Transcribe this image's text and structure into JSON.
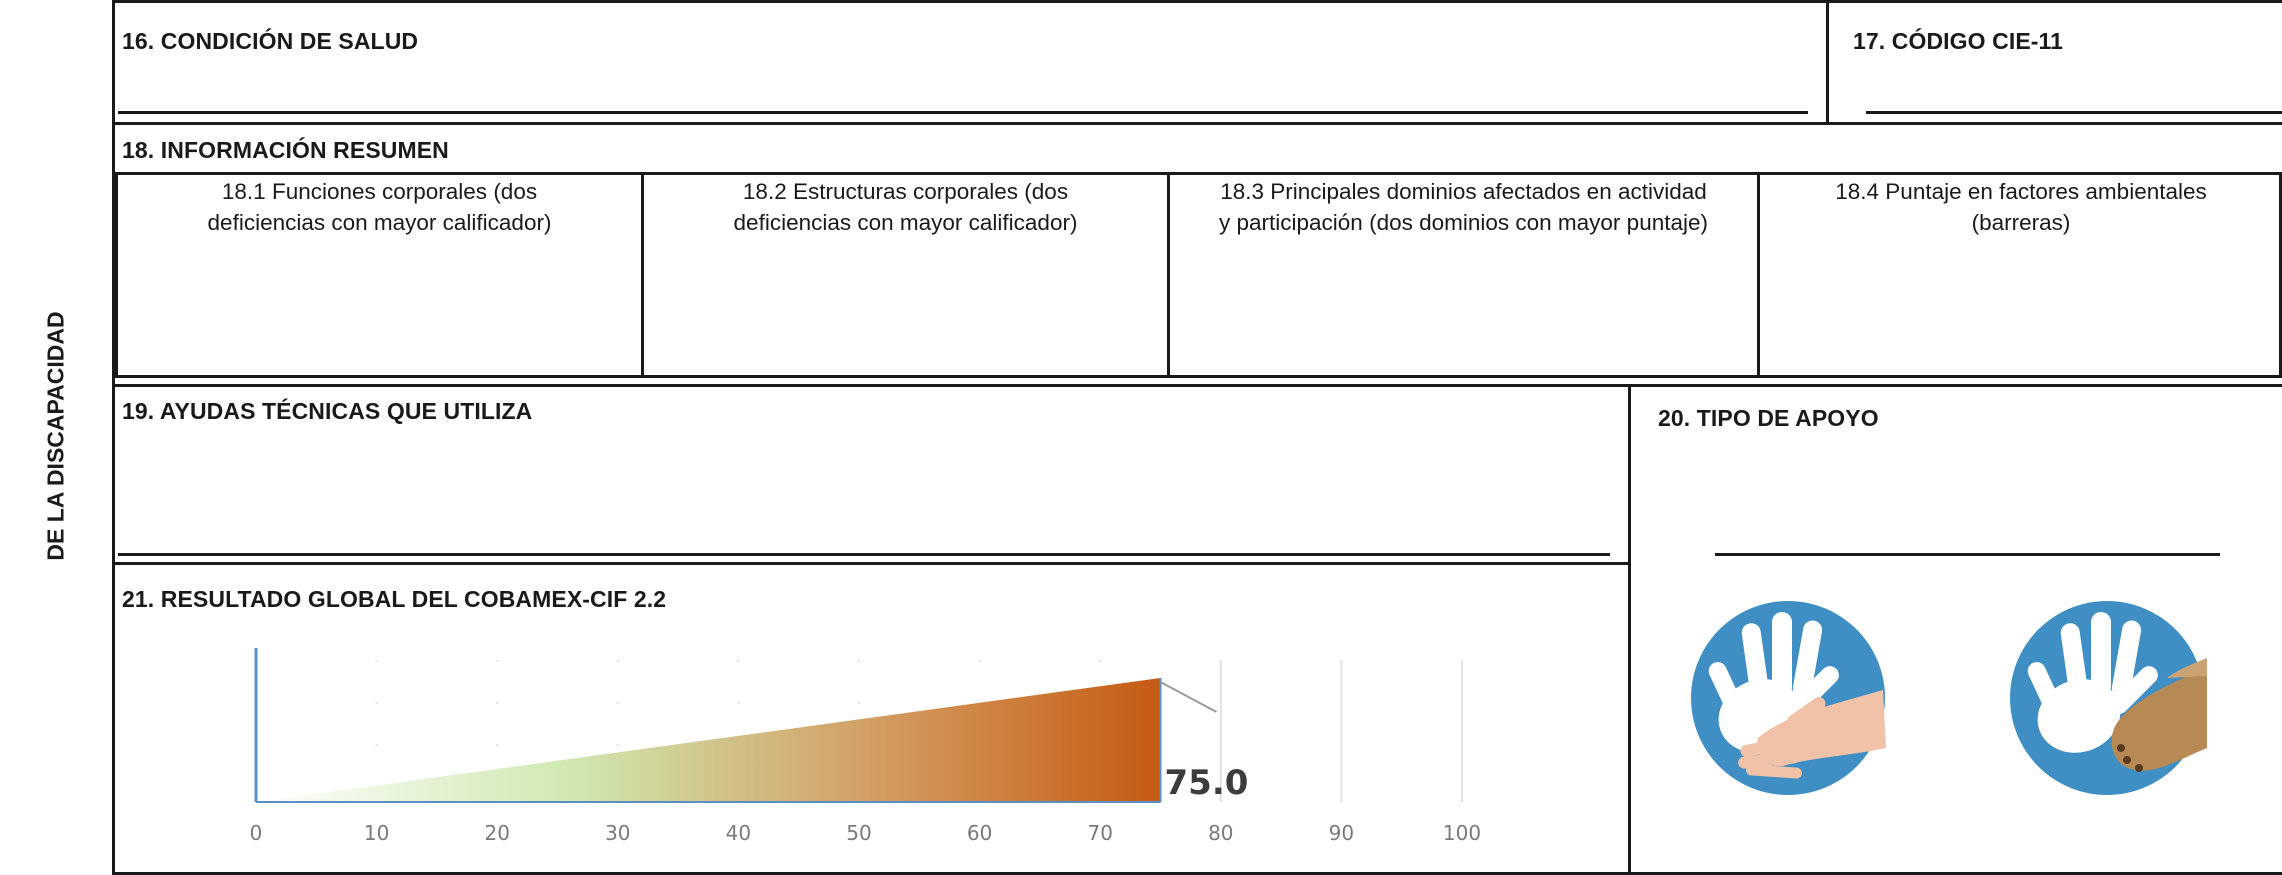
{
  "side_label": "DE LA DISCAPACIDAD",
  "sections": {
    "s16": {
      "title": "16. CONDICIÓN DE SALUD"
    },
    "s17": {
      "title": "17. CÓDIGO CIE-11"
    },
    "s18": {
      "title": "18. INFORMACIÓN RESUMEN",
      "cells": [
        {
          "line1": "18.1 Funciones corporales (dos",
          "line2": "deficiencias con mayor calificador)"
        },
        {
          "line1": "18.2 Estructuras corporales (dos",
          "line2": "deficiencias con mayor calificador)"
        },
        {
          "line1": "18.3 Principales dominios afectados en actividad",
          "line2": "y participación (dos dominios con mayor puntaje)"
        },
        {
          "line1": "18.4 Puntaje en factores ambientales",
          "line2": "(barreras)"
        }
      ]
    },
    "s19": {
      "title": "19. AYUDAS TÉCNICAS QUE UTILIZA"
    },
    "s20": {
      "title": "20. TIPO DE APOYO"
    },
    "s21": {
      "title": "21. RESULTADO GLOBAL DEL COBAMEX-CIF 2.2"
    }
  },
  "chart_data": {
    "type": "bar",
    "value": 75.0,
    "value_label": "75.0",
    "xlim": [
      0,
      100
    ],
    "x_ticks": [
      "0",
      "10",
      "20",
      "30",
      "40",
      "50",
      "60",
      "70",
      "80",
      "90",
      "100"
    ],
    "gradient_colors": [
      "#ffffff",
      "#cfe8b0",
      "#d39a5e",
      "#c55a12"
    ]
  },
  "icons": [
    "human-hand-support-icon",
    "animal-paw-support-icon"
  ]
}
